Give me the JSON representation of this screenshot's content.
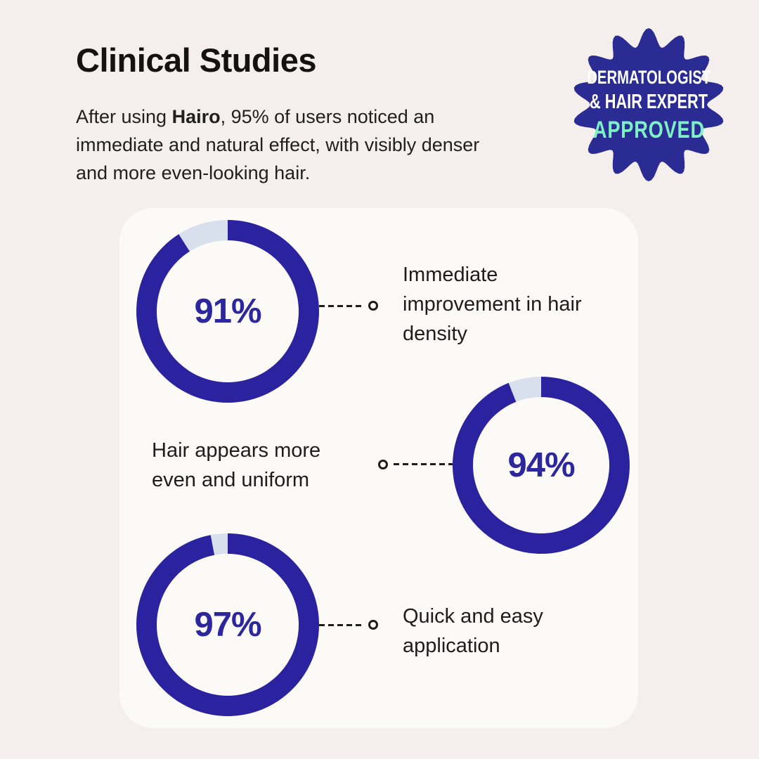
{
  "colors": {
    "pageBg": "#f4efec",
    "cardBg": "#fbfaf7",
    "ring": "#2b22a0",
    "ringRest": "#d8e0ed",
    "pct": "#2d279e",
    "line": "#1f1d1b",
    "ink": "#151311",
    "mint": "#7df0c5",
    "badgeBg": "#2b2b94"
  },
  "header": {
    "title": "Clinical Studies",
    "intro_lines": [
      {
        "before": "After using ",
        "bold": "Hairo",
        "after": ", 95% of users noticed an"
      },
      {
        "text": "immediate and natural effect, with visibly denser"
      },
      {
        "text": "and more even-looking hair."
      }
    ]
  },
  "badge": {
    "line1": "DERMATOLOGIST",
    "line2": "& HAIR EXPERT",
    "line3": "APPROVED"
  },
  "chart_data": {
    "type": "pie",
    "subtype": "donut",
    "title": "Clinical Studies",
    "unit": "%",
    "value_range": [
      0,
      100
    ],
    "series": [
      {
        "name": "Immediate improvement in hair density",
        "value": 91,
        "percent_label": "91%",
        "label_lines": [
          "Immediate",
          "improvement in hair",
          "density"
        ],
        "connector_side": "right"
      },
      {
        "name": "Hair appears more even and uniform",
        "value": 94,
        "percent_label": "94%",
        "label_lines": [
          "Hair appears more",
          "even and uniform"
        ],
        "connector_side": "left"
      },
      {
        "name": "Quick and easy application",
        "value": 97,
        "percent_label": "97%",
        "label_lines": [
          "Quick and easy",
          "application"
        ],
        "connector_side": "right"
      }
    ]
  }
}
